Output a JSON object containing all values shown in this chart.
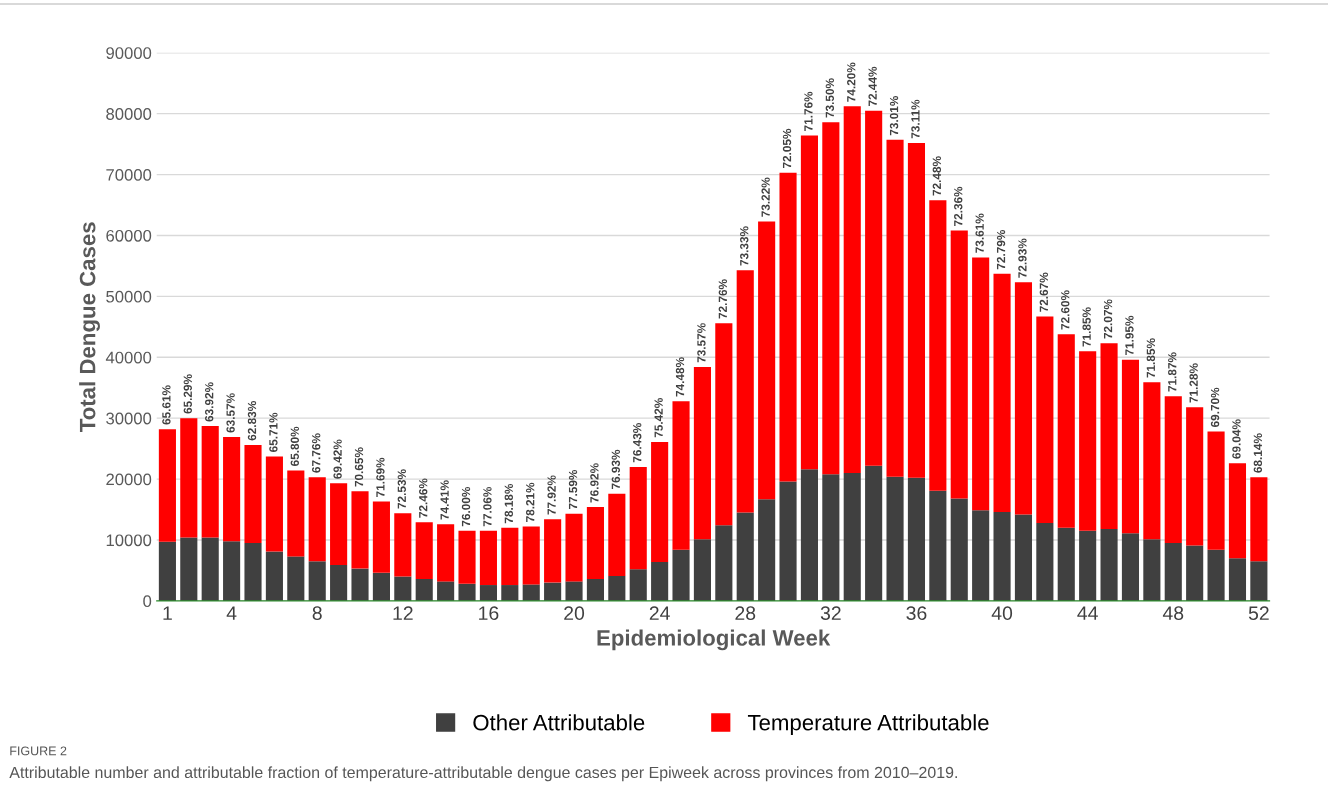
{
  "chart_data": {
    "type": "bar",
    "stacked": true,
    "xlabel": "Epidemiological Week",
    "ylabel": "Total Dengue Cases",
    "x": [
      1,
      2,
      3,
      4,
      5,
      6,
      7,
      8,
      9,
      10,
      11,
      12,
      13,
      14,
      15,
      16,
      17,
      18,
      19,
      20,
      21,
      22,
      23,
      24,
      25,
      26,
      27,
      28,
      29,
      30,
      31,
      32,
      33,
      34,
      35,
      36,
      37,
      38,
      39,
      40,
      41,
      42,
      43,
      44,
      45,
      46,
      47,
      48,
      49,
      50,
      51,
      52
    ],
    "xlim": [
      0.5,
      52.5
    ],
    "xticks": [
      1,
      4,
      8,
      12,
      16,
      20,
      24,
      28,
      32,
      36,
      40,
      44,
      48,
      52
    ],
    "series": [
      {
        "name": "Other Attributable",
        "color": "#404040",
        "values": [
          9700,
          10400,
          10400,
          9800,
          9500,
          8100,
          7300,
          6500,
          5900,
          5300,
          4600,
          4000,
          3600,
          3200,
          2800,
          2600,
          2600,
          2700,
          3000,
          3200,
          3600,
          4100,
          5200,
          6400,
          8400,
          10100,
          12400,
          14500,
          16700,
          19600,
          21600,
          20800,
          21000,
          22200,
          20400,
          20200,
          18100,
          16800,
          14900,
          14600,
          14200,
          12800,
          12000,
          11500,
          11800,
          11100,
          10100,
          9500,
          9100,
          8400,
          7000,
          6500
        ]
      },
      {
        "name": "Temperature Attributable",
        "color": "#ff0000",
        "values": [
          18500,
          19600,
          18300,
          17100,
          16100,
          15600,
          14100,
          13800,
          13400,
          12700,
          11700,
          10400,
          9300,
          9400,
          8700,
          8900,
          9400,
          9500,
          10400,
          11100,
          11800,
          13500,
          16800,
          19700,
          24400,
          28300,
          33200,
          39800,
          45600,
          50700,
          54800,
          57800,
          60200,
          58300,
          55300,
          55000,
          47700,
          44000,
          41500,
          39100,
          38100,
          33900,
          31800,
          29500,
          30500,
          28500,
          25800,
          24100,
          22700,
          19400,
          15600,
          13800
        ]
      }
    ],
    "ylim": [
      0,
      90000
    ],
    "yticks": [
      0,
      10000,
      20000,
      30000,
      40000,
      50000,
      60000,
      70000,
      80000,
      90000
    ],
    "grid": "y",
    "legend": "bottom",
    "annotations": [
      {
        "text": "65.61%",
        "x": 1,
        "y": 28200
      },
      {
        "text": "65.29%",
        "x": 2,
        "y": 30000
      },
      {
        "text": "63.92%",
        "x": 3,
        "y": 28700
      },
      {
        "text": "63.57%",
        "x": 4,
        "y": 26900
      },
      {
        "text": "62.83%",
        "x": 5,
        "y": 25600
      },
      {
        "text": "65.71%",
        "x": 6,
        "y": 23700
      },
      {
        "text": "65.80%",
        "x": 7,
        "y": 21400
      },
      {
        "text": "67.76%",
        "x": 8,
        "y": 20300
      },
      {
        "text": "69.42%",
        "x": 9,
        "y": 19300
      },
      {
        "text": "70.65%",
        "x": 10,
        "y": 18000
      },
      {
        "text": "71.69%",
        "x": 11,
        "y": 16300
      },
      {
        "text": "72.53%",
        "x": 12,
        "y": 14400
      },
      {
        "text": "72.46%",
        "x": 13,
        "y": 12900
      },
      {
        "text": "74.41%",
        "x": 14,
        "y": 12600
      },
      {
        "text": "76.00%",
        "x": 15,
        "y": 11500
      },
      {
        "text": "77.06%",
        "x": 16,
        "y": 11500
      },
      {
        "text": "78.18%",
        "x": 17,
        "y": 12000
      },
      {
        "text": "78.21%",
        "x": 18,
        "y": 12200
      },
      {
        "text": "77.92%",
        "x": 19,
        "y": 13400
      },
      {
        "text": "77.59%",
        "x": 20,
        "y": 14300
      },
      {
        "text": "76.92%",
        "x": 21,
        "y": 15400
      },
      {
        "text": "76.93%",
        "x": 22,
        "y": 17600
      },
      {
        "text": "76.43%",
        "x": 23,
        "y": 22000
      },
      {
        "text": "75.42%",
        "x": 24,
        "y": 26100
      },
      {
        "text": "74.48%",
        "x": 25,
        "y": 32800
      },
      {
        "text": "73.57%",
        "x": 26,
        "y": 38400
      },
      {
        "text": "72.76%",
        "x": 27,
        "y": 45600
      },
      {
        "text": "73.33%",
        "x": 28,
        "y": 54300
      },
      {
        "text": "73.22%",
        "x": 29,
        "y": 62300
      },
      {
        "text": "72.05%",
        "x": 30,
        "y": 70300
      },
      {
        "text": "71.76%",
        "x": 31,
        "y": 76400
      },
      {
        "text": "73.50%",
        "x": 32,
        "y": 78600
      },
      {
        "text": "74.20%",
        "x": 33,
        "y": 81200
      },
      {
        "text": "72.44%",
        "x": 34,
        "y": 80500
      },
      {
        "text": "73.01%",
        "x": 35,
        "y": 75700
      },
      {
        "text": "73.11%",
        "x": 36,
        "y": 75200
      },
      {
        "text": "72.48%",
        "x": 37,
        "y": 65800
      },
      {
        "text": "72.36%",
        "x": 38,
        "y": 60800
      },
      {
        "text": "73.61%",
        "x": 39,
        "y": 56400
      },
      {
        "text": "72.79%",
        "x": 40,
        "y": 53700
      },
      {
        "text": "72.93%",
        "x": 41,
        "y": 52300
      },
      {
        "text": "72.67%",
        "x": 42,
        "y": 46700
      },
      {
        "text": "72.60%",
        "x": 43,
        "y": 43800
      },
      {
        "text": "71.85%",
        "x": 44,
        "y": 41000
      },
      {
        "text": "72.07%",
        "x": 45,
        "y": 42300
      },
      {
        "text": "71.95%",
        "x": 46,
        "y": 39600
      },
      {
        "text": "71.85%",
        "x": 47,
        "y": 35900
      },
      {
        "text": "71.87%",
        "x": 48,
        "y": 33600
      },
      {
        "text": "71.28%",
        "x": 49,
        "y": 31800
      },
      {
        "text": "69.70%",
        "x": 50,
        "y": 27800
      },
      {
        "text": "69.04%",
        "x": 51,
        "y": 22600
      },
      {
        "text": "68.14%",
        "x": 52,
        "y": 20300
      },
      "FIGURE 2",
      "Attributable number and attributable fraction of temperature-attributable dengue cases per Epiweek across provinces from 2010–2019."
    ]
  }
}
